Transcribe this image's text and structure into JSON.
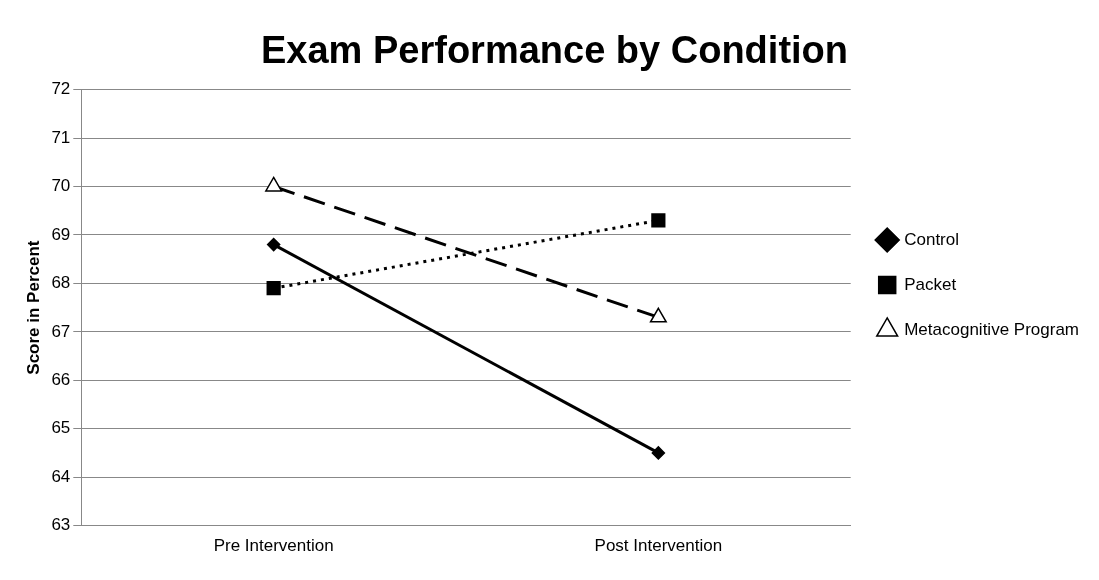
{
  "chart_data": {
    "type": "line",
    "title": "Exam Performance by Condition",
    "ylabel": "Score in Percent",
    "categories": [
      "Pre Intervention",
      "Post Intervention"
    ],
    "series": [
      {
        "name": "Control",
        "color": "#000000",
        "values": [
          68.8,
          64.5
        ],
        "marker": "diamond",
        "line_style": "solid"
      },
      {
        "name": "Packet",
        "color": "#000000",
        "values": [
          67.9,
          69.3
        ],
        "marker": "square",
        "line_style": "dotted"
      },
      {
        "name": "Metacognitive Program",
        "color": "#000000",
        "values": [
          70.0,
          67.3
        ],
        "marker": "triangle",
        "line_style": "dashed"
      }
    ],
    "ylim": [
      63,
      72
    ],
    "yticks": [
      63,
      64,
      65,
      66,
      67,
      68,
      69,
      70,
      71,
      72
    ],
    "grid": "y",
    "legend": "right"
  }
}
